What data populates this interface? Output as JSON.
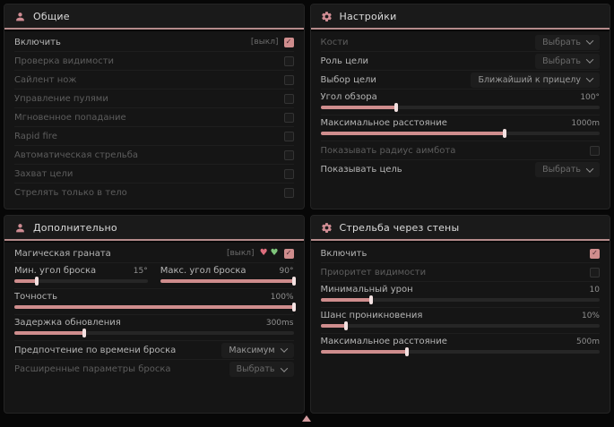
{
  "colors": {
    "accent": "#cf8d8d",
    "header_line": "#b58b8b",
    "panel_bg": "#151515",
    "page_bg": "#070707",
    "heart_pink": "#de6e7d",
    "heart_green": "#7fc57b"
  },
  "icons": {
    "person": "person-icon",
    "gear": "gear-icon",
    "pink_heart": "♥",
    "green_heart": "♥",
    "check": "✓"
  },
  "panels": {
    "general": {
      "title": "Общие",
      "rows": [
        {
          "label": "Включить",
          "badge": "[выкл]",
          "checked": true
        },
        {
          "label": "Проверка видимости",
          "checked": false
        },
        {
          "label": "Сайлент нож",
          "checked": false
        },
        {
          "label": "Управление пулями",
          "checked": false
        },
        {
          "label": "Мгновенное попадание",
          "checked": false
        },
        {
          "label": "Rapid fire",
          "checked": false
        },
        {
          "label": "Автоматическая стрельба",
          "checked": false
        },
        {
          "label": "Захват цели",
          "checked": false
        },
        {
          "label": "Стрелять только в тело",
          "checked": false
        }
      ]
    },
    "settings": {
      "title": "Настройки",
      "rows": [
        {
          "label": "Кости",
          "value": "Выбрать"
        },
        {
          "label": "Роль цели",
          "value": "Выбрать"
        },
        {
          "label": "Выбор цели",
          "value": "Ближайший к прицелу"
        },
        {
          "label": "Угол обзора",
          "value": "100°",
          "fill": 27
        },
        {
          "label": "Максимальное расстояние",
          "value": "1000m",
          "fill": 66
        },
        {
          "label": "Показывать радиус аимбота",
          "checked": false
        },
        {
          "label": "Показывать цель",
          "value": "Выбрать"
        }
      ]
    },
    "extra": {
      "title": "Дополнительно",
      "rows": [
        {
          "label": "Магическая граната",
          "badge": "[выкл]",
          "checked": true
        },
        {
          "label": "Мин. угол броска",
          "value": "15°",
          "fill": 17
        },
        {
          "label": "Макс. угол броска",
          "value": "90°",
          "fill": 100
        },
        {
          "label": "Точность",
          "value": "100%",
          "fill": 100
        },
        {
          "label": "Задержка обновления",
          "value": "300ms",
          "fill": 25
        },
        {
          "label": "Предпочтение по времени броска",
          "value": "Максимум"
        },
        {
          "label": "Расширенные параметры броска",
          "value": "Выбрать"
        }
      ]
    },
    "walls": {
      "title": "Стрельба через стены",
      "rows": [
        {
          "label": "Включить",
          "checked": true
        },
        {
          "label": "Приоритет видимости",
          "checked": false
        },
        {
          "label": "Минимальный урон",
          "value": "10",
          "fill": 18
        },
        {
          "label": "Шанс проникновения",
          "value": "10%",
          "fill": 9
        },
        {
          "label": "Максимальное расстояние",
          "value": "500m",
          "fill": 31
        }
      ]
    }
  }
}
